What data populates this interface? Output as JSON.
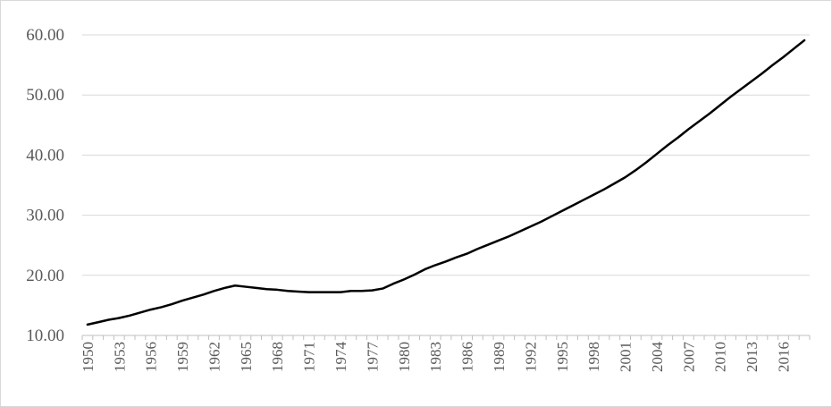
{
  "chart_data": {
    "type": "line",
    "title": "",
    "xlabel": "",
    "ylabel": "",
    "ylim": [
      10,
      60
    ],
    "yticks": [
      "10.00",
      "20.00",
      "30.00",
      "40.00",
      "50.00",
      "60.00"
    ],
    "xticks": [
      "1950",
      "1953",
      "1956",
      "1959",
      "1962",
      "1965",
      "1968",
      "1971",
      "1974",
      "1977",
      "1980",
      "1983",
      "1986",
      "1989",
      "1992",
      "1995",
      "1998",
      "2001",
      "2004",
      "2007",
      "2010",
      "2013",
      "2016"
    ],
    "grid": "horizontal",
    "legend": "none",
    "line_color": "#000000",
    "x": [
      1950,
      1951,
      1952,
      1953,
      1954,
      1955,
      1956,
      1957,
      1958,
      1959,
      1960,
      1961,
      1962,
      1963,
      1964,
      1965,
      1966,
      1967,
      1968,
      1969,
      1970,
      1971,
      1972,
      1973,
      1974,
      1975,
      1976,
      1977,
      1978,
      1979,
      1980,
      1981,
      1982,
      1983,
      1984,
      1985,
      1986,
      1987,
      1988,
      1989,
      1990,
      1991,
      1992,
      1993,
      1994,
      1995,
      1996,
      1997,
      1998,
      1999,
      2000,
      2001,
      2002,
      2003,
      2004,
      2005,
      2006,
      2007,
      2008,
      2009,
      2010,
      2011,
      2012,
      2013,
      2014,
      2015,
      2016,
      2017,
      2018
    ],
    "series": [
      {
        "values": [
          11.8,
          12.2,
          12.6,
          12.9,
          13.3,
          13.8,
          14.3,
          14.7,
          15.2,
          15.8,
          16.3,
          16.8,
          17.4,
          17.9,
          18.3,
          18.1,
          17.9,
          17.7,
          17.6,
          17.4,
          17.3,
          17.2,
          17.2,
          17.2,
          17.2,
          17.4,
          17.4,
          17.5,
          17.8,
          18.6,
          19.3,
          20.1,
          21.0,
          21.7,
          22.3,
          23.0,
          23.6,
          24.4,
          25.1,
          25.8,
          26.5,
          27.3,
          28.1,
          28.9,
          29.8,
          30.7,
          31.6,
          32.5,
          33.4,
          34.3,
          35.3,
          36.3,
          37.5,
          38.8,
          40.2,
          41.6,
          42.9,
          44.3,
          45.6,
          46.9,
          48.3,
          49.7,
          51.0,
          52.3,
          53.6,
          55.0,
          56.3,
          57.7,
          59.1
        ]
      }
    ]
  }
}
